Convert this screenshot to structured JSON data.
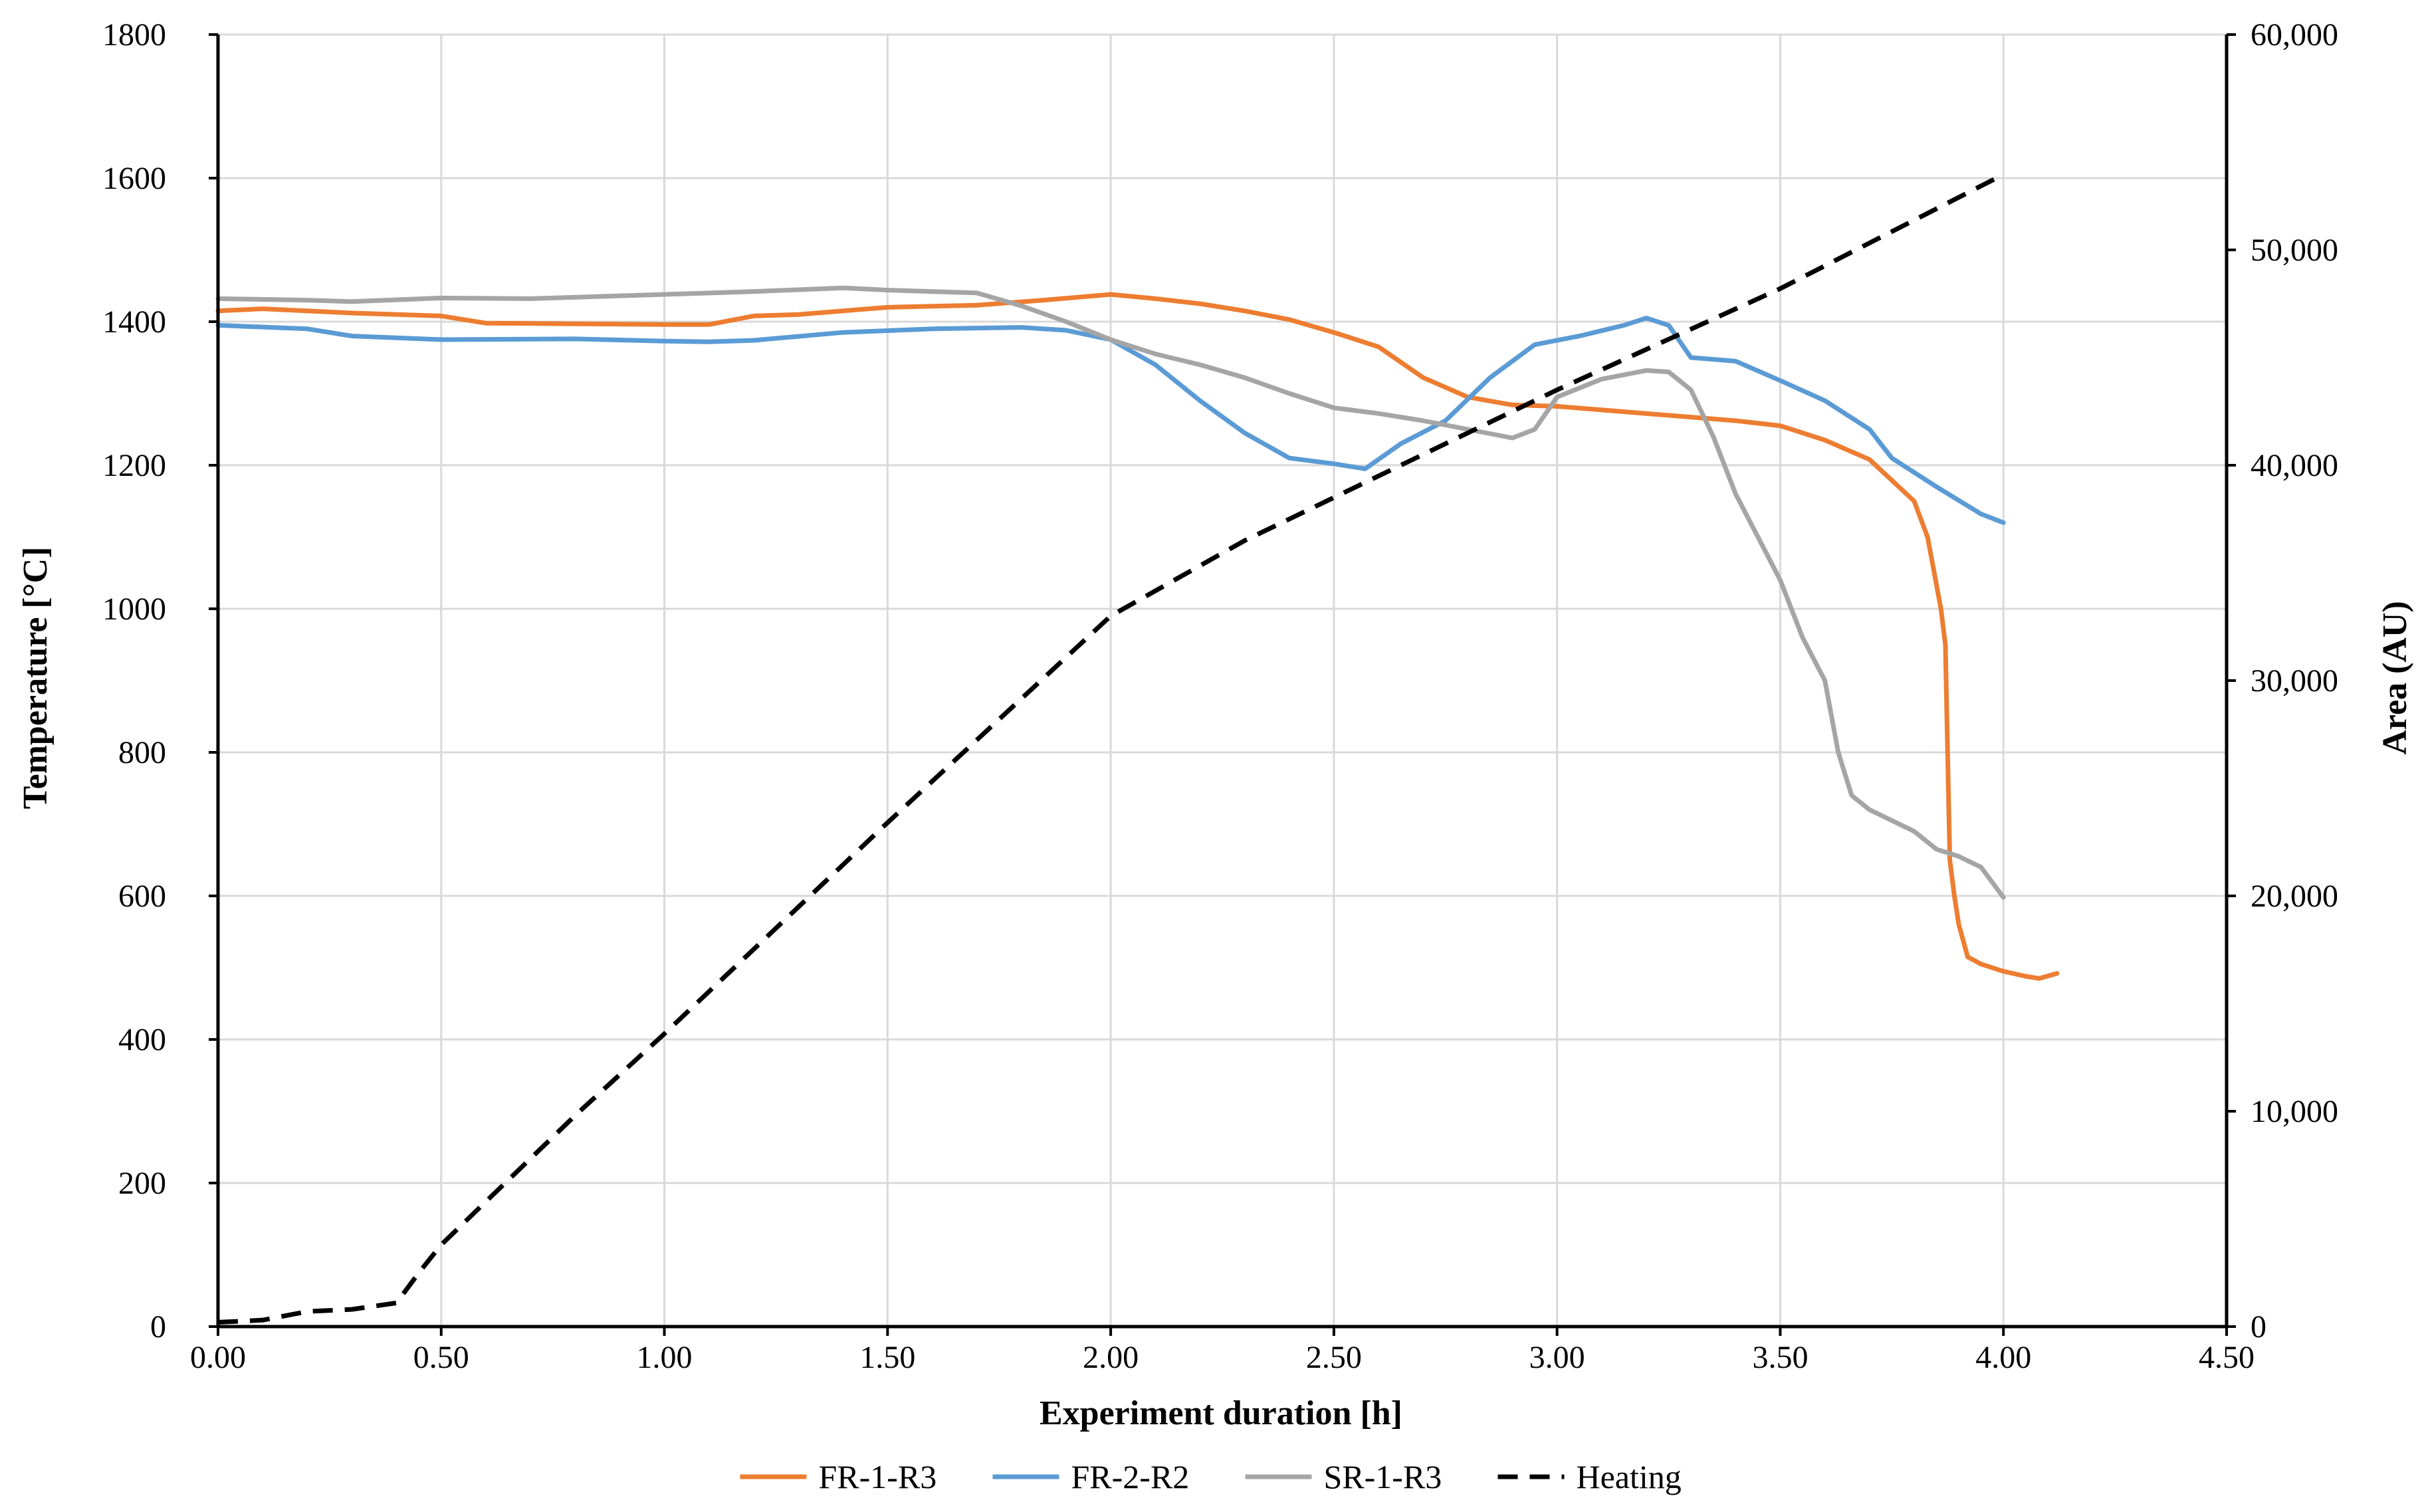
{
  "chart_data": {
    "type": "line",
    "title": "",
    "xlabel": "Experiment duration [h]",
    "ylabel": "Temperature [°C]",
    "y2label": "Area (AU)",
    "xlim": [
      0,
      4.5
    ],
    "ylim": [
      0,
      1800
    ],
    "y2lim": [
      0,
      60000
    ],
    "x_ticks": [
      "0.00",
      "0.50",
      "1.00",
      "1.50",
      "2.00",
      "2.50",
      "3.00",
      "3.50",
      "4.00",
      "4.50"
    ],
    "y_ticks": [
      "0",
      "200",
      "400",
      "600",
      "800",
      "1000",
      "1200",
      "1400",
      "1600",
      "1800"
    ],
    "y2_ticks": [
      "0",
      "10,000",
      "20,000",
      "30,000",
      "40,000",
      "50,000",
      "60,000"
    ],
    "grid": true,
    "legend_position": "bottom",
    "series": [
      {
        "name": "FR-1-R3",
        "axis": "left",
        "color": "#ED7D31",
        "dash": "solid",
        "points": [
          [
            0,
            1415
          ],
          [
            0.1,
            1418
          ],
          [
            0.3,
            1412
          ],
          [
            0.5,
            1408
          ],
          [
            0.6,
            1398
          ],
          [
            0.8,
            1397
          ],
          [
            1.0,
            1396
          ],
          [
            1.1,
            1396
          ],
          [
            1.2,
            1408
          ],
          [
            1.3,
            1410
          ],
          [
            1.5,
            1420
          ],
          [
            1.7,
            1423
          ],
          [
            1.85,
            1430
          ],
          [
            2.0,
            1438
          ],
          [
            2.1,
            1432
          ],
          [
            2.2,
            1425
          ],
          [
            2.3,
            1415
          ],
          [
            2.4,
            1403
          ],
          [
            2.5,
            1385
          ],
          [
            2.6,
            1365
          ],
          [
            2.7,
            1322
          ],
          [
            2.8,
            1295
          ],
          [
            2.9,
            1284
          ],
          [
            3.0,
            1282
          ],
          [
            3.1,
            1277
          ],
          [
            3.2,
            1272
          ],
          [
            3.3,
            1267
          ],
          [
            3.4,
            1262
          ],
          [
            3.5,
            1255
          ],
          [
            3.6,
            1235
          ],
          [
            3.7,
            1208
          ],
          [
            3.8,
            1150
          ],
          [
            3.83,
            1100
          ],
          [
            3.86,
            1000
          ],
          [
            3.87,
            950
          ],
          [
            3.88,
            650
          ],
          [
            3.89,
            600
          ],
          [
            3.9,
            560
          ],
          [
            3.92,
            515
          ],
          [
            3.95,
            505
          ],
          [
            4.0,
            495
          ],
          [
            4.05,
            488
          ],
          [
            4.08,
            485
          ],
          [
            4.12,
            492
          ]
        ]
      },
      {
        "name": "FR-2-R2",
        "axis": "left",
        "color": "#5B9BD5",
        "dash": "solid",
        "points": [
          [
            0,
            1395
          ],
          [
            0.2,
            1390
          ],
          [
            0.3,
            1380
          ],
          [
            0.5,
            1375
          ],
          [
            0.8,
            1376
          ],
          [
            1.0,
            1373
          ],
          [
            1.1,
            1372
          ],
          [
            1.2,
            1374
          ],
          [
            1.4,
            1385
          ],
          [
            1.6,
            1390
          ],
          [
            1.8,
            1392
          ],
          [
            1.9,
            1388
          ],
          [
            2.0,
            1375
          ],
          [
            2.1,
            1340
          ],
          [
            2.2,
            1290
          ],
          [
            2.3,
            1245
          ],
          [
            2.4,
            1210
          ],
          [
            2.5,
            1202
          ],
          [
            2.57,
            1195
          ],
          [
            2.65,
            1230
          ],
          [
            2.75,
            1262
          ],
          [
            2.85,
            1322
          ],
          [
            2.95,
            1368
          ],
          [
            3.05,
            1380
          ],
          [
            3.15,
            1395
          ],
          [
            3.2,
            1405
          ],
          [
            3.25,
            1395
          ],
          [
            3.3,
            1350
          ],
          [
            3.4,
            1345
          ],
          [
            3.5,
            1318
          ],
          [
            3.6,
            1290
          ],
          [
            3.7,
            1250
          ],
          [
            3.75,
            1210
          ],
          [
            3.85,
            1170
          ],
          [
            3.95,
            1132
          ],
          [
            4.0,
            1120
          ]
        ]
      },
      {
        "name": "SR-1-R3",
        "axis": "left",
        "color": "#A5A5A5",
        "dash": "solid",
        "points": [
          [
            0,
            1432
          ],
          [
            0.2,
            1430
          ],
          [
            0.3,
            1428
          ],
          [
            0.5,
            1433
          ],
          [
            0.7,
            1432
          ],
          [
            1.0,
            1438
          ],
          [
            1.2,
            1442
          ],
          [
            1.4,
            1447
          ],
          [
            1.5,
            1444
          ],
          [
            1.7,
            1440
          ],
          [
            1.8,
            1422
          ],
          [
            1.9,
            1400
          ],
          [
            2.0,
            1375
          ],
          [
            2.1,
            1355
          ],
          [
            2.2,
            1340
          ],
          [
            2.3,
            1322
          ],
          [
            2.4,
            1300
          ],
          [
            2.5,
            1280
          ],
          [
            2.6,
            1272
          ],
          [
            2.7,
            1262
          ],
          [
            2.8,
            1250
          ],
          [
            2.9,
            1238
          ],
          [
            2.95,
            1250
          ],
          [
            3.0,
            1295
          ],
          [
            3.1,
            1320
          ],
          [
            3.2,
            1332
          ],
          [
            3.25,
            1330
          ],
          [
            3.3,
            1305
          ],
          [
            3.35,
            1240
          ],
          [
            3.4,
            1160
          ],
          [
            3.45,
            1100
          ],
          [
            3.5,
            1040
          ],
          [
            3.55,
            960
          ],
          [
            3.6,
            900
          ],
          [
            3.63,
            800
          ],
          [
            3.66,
            740
          ],
          [
            3.7,
            720
          ],
          [
            3.8,
            690
          ],
          [
            3.85,
            665
          ],
          [
            3.9,
            655
          ],
          [
            3.95,
            640
          ],
          [
            4.0,
            598
          ]
        ]
      },
      {
        "name": "Heating",
        "axis": "right",
        "color": "#000000",
        "dash": "dashed",
        "points": [
          [
            0,
            200
          ],
          [
            0.1,
            300
          ],
          [
            0.2,
            700
          ],
          [
            0.3,
            800
          ],
          [
            0.4,
            1100
          ],
          [
            0.45,
            2500
          ],
          [
            0.5,
            3800
          ],
          [
            0.6,
            5800
          ],
          [
            0.7,
            7800
          ],
          [
            0.8,
            9800
          ],
          [
            1.0,
            13600
          ],
          [
            1.5,
            23400
          ],
          [
            2.0,
            33000
          ],
          [
            2.3,
            36500
          ],
          [
            2.7,
            40500
          ],
          [
            3.0,
            43500
          ],
          [
            3.5,
            48200
          ],
          [
            4.0,
            53500
          ]
        ]
      }
    ]
  }
}
